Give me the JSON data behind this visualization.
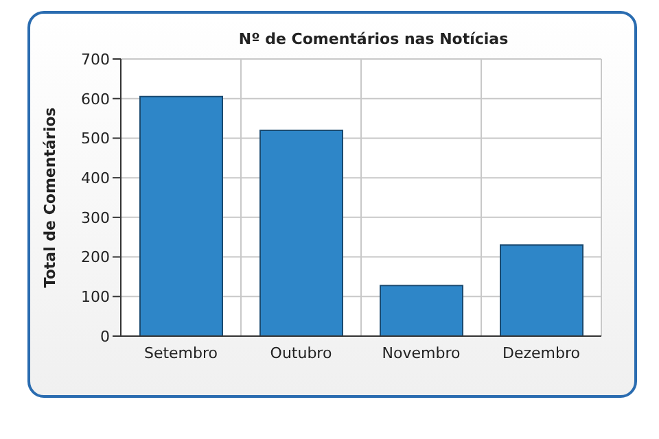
{
  "chart_data": {
    "type": "bar",
    "title": "Nº de Comentários nas Notícias",
    "ylabel": "Total de Comentários",
    "categories": [
      "Setembro",
      "Outubro",
      "Novembro",
      "Dezembro"
    ],
    "values": [
      605,
      520,
      128,
      230
    ],
    "color": "#2e86c8",
    "ylim": [
      0,
      700
    ],
    "yticks": [
      0,
      100,
      200,
      300,
      400,
      500,
      600,
      700
    ],
    "grid": true
  }
}
